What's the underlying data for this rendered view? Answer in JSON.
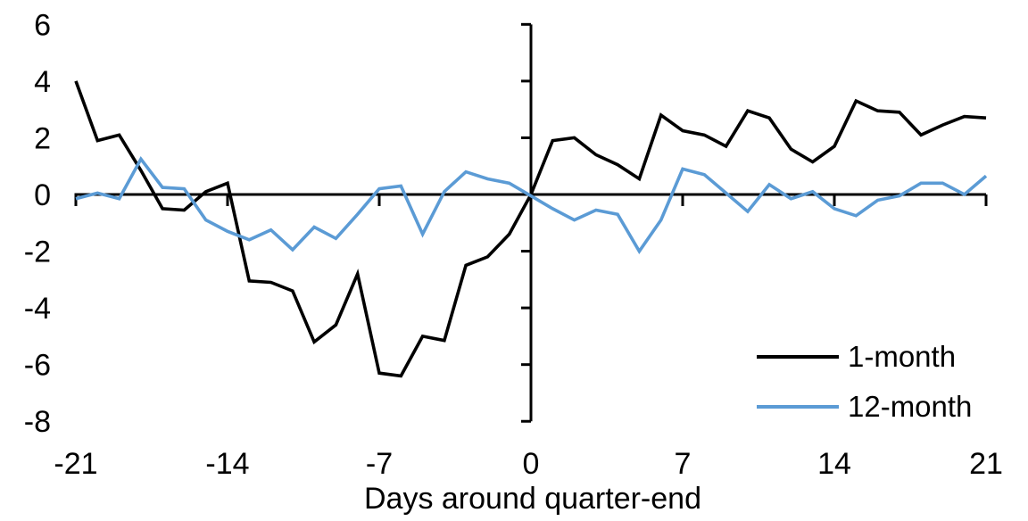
{
  "chart_data": {
    "type": "line",
    "title": "",
    "xlabel": "Days around quarter-end",
    "ylabel": "",
    "xlim": [
      -21,
      21
    ],
    "ylim": [
      -8,
      6
    ],
    "xticks": [
      -21,
      -14,
      -7,
      0,
      7,
      14,
      21
    ],
    "yticks": [
      6,
      4,
      2,
      0,
      -2,
      -4,
      -6,
      -8
    ],
    "grid": false,
    "legend_position": "right-middle",
    "axis_color": "#000000",
    "x": [
      -21,
      -20,
      -19,
      -18,
      -17,
      -16,
      -15,
      -14,
      -13,
      -12,
      -11,
      -10,
      -9,
      -8,
      -7,
      -6,
      -5,
      -4,
      -3,
      -2,
      -1,
      0,
      1,
      2,
      3,
      4,
      5,
      6,
      7,
      8,
      9,
      10,
      11,
      12,
      13,
      14,
      15,
      16,
      17,
      18,
      19,
      20,
      21
    ],
    "series": [
      {
        "name": "1-month",
        "color": "#000000",
        "values": [
          4.0,
          1.9,
          2.1,
          0.85,
          -0.5,
          -0.55,
          0.1,
          0.4,
          -3.05,
          -3.1,
          -3.4,
          -5.2,
          -4.6,
          -2.8,
          -6.3,
          -6.4,
          -5.0,
          -5.15,
          -2.5,
          -2.2,
          -1.4,
          0.0,
          1.9,
          2.0,
          1.4,
          1.05,
          0.55,
          2.8,
          2.25,
          2.1,
          1.7,
          2.95,
          2.7,
          1.6,
          1.15,
          1.7,
          3.3,
          2.95,
          2.9,
          2.1,
          2.45,
          2.75,
          2.7
        ]
      },
      {
        "name": "12-month",
        "color": "#5B9BD5",
        "values": [
          -0.15,
          0.05,
          -0.15,
          1.25,
          0.25,
          0.2,
          -0.9,
          -1.3,
          -1.6,
          -1.25,
          -1.95,
          -1.15,
          -1.55,
          -0.7,
          0.2,
          0.3,
          -1.4,
          0.1,
          0.8,
          0.55,
          0.4,
          -0.05,
          -0.5,
          -0.9,
          -0.55,
          -0.7,
          -2.0,
          -0.9,
          0.9,
          0.7,
          0.05,
          -0.6,
          0.35,
          -0.15,
          0.1,
          -0.5,
          -0.75,
          -0.2,
          -0.05,
          0.4,
          0.4,
          0.0,
          0.65
        ]
      }
    ]
  }
}
